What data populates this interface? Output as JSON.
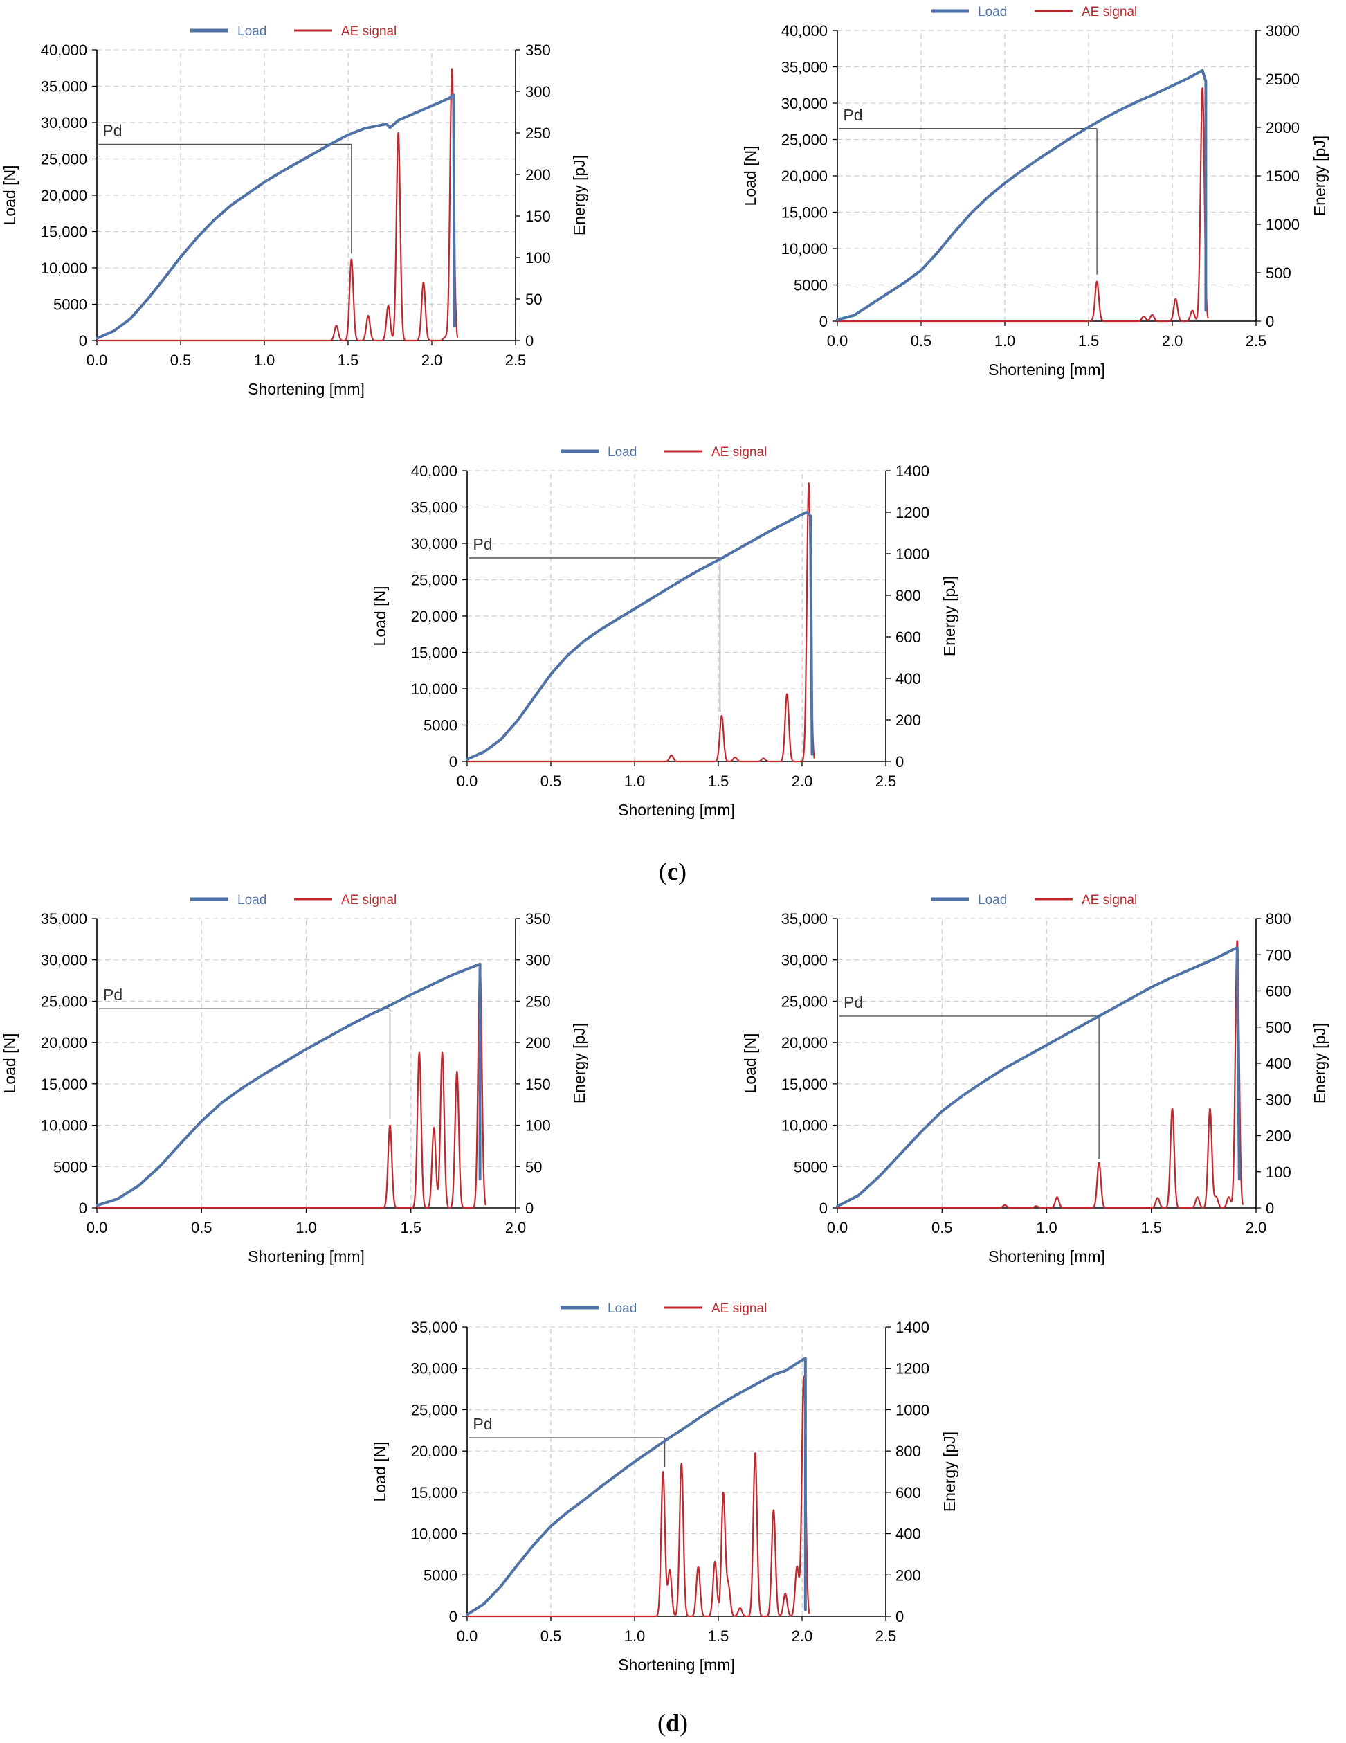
{
  "panel_labels": {
    "c": "c",
    "d": "d"
  },
  "colors": {
    "load": "#4f73a6",
    "ae": "#c0282d",
    "pd_line": "#555555",
    "axis": "#000000",
    "grid": "#d0d0d0"
  },
  "chart_data": [
    {
      "type": "line",
      "panel": "c",
      "position_in_panel": "top-left",
      "legend": {
        "load": "Load",
        "ae": "AE signal"
      },
      "xlabel": "Shortening [mm]",
      "ylabel": "Load [N]",
      "y2label": "Energy [pJ]",
      "xlim": [
        0,
        2.5
      ],
      "ylim": [
        0,
        40000
      ],
      "y2lim": [
        0,
        350
      ],
      "xticks": [
        0,
        0.5,
        1,
        1.5,
        2,
        2.5
      ],
      "xtick_labels": [
        "0.0",
        "0.5",
        "1.0",
        "1.5",
        "2.0",
        "2.5"
      ],
      "yticks": [
        0,
        5000,
        10000,
        15000,
        20000,
        25000,
        30000,
        35000,
        40000
      ],
      "ytick_labels": [
        "0",
        "5000",
        "10,000",
        "15,000",
        "20,000",
        "25,000",
        "30,000",
        "35,000",
        "40,000"
      ],
      "y2ticks": [
        0,
        50,
        100,
        150,
        200,
        250,
        300,
        350
      ],
      "y2tick_labels": [
        "0",
        "50",
        "100",
        "150",
        "200",
        "250",
        "300",
        "350"
      ],
      "pd": {
        "label": "Pd",
        "load": 27000,
        "x_start": 0.01,
        "x_end": 1.52,
        "energy_low": 105
      },
      "load_series": [
        [
          0,
          300
        ],
        [
          0.1,
          1300
        ],
        [
          0.2,
          3000
        ],
        [
          0.3,
          5600
        ],
        [
          0.4,
          8500
        ],
        [
          0.5,
          11500
        ],
        [
          0.6,
          14200
        ],
        [
          0.7,
          16600
        ],
        [
          0.8,
          18600
        ],
        [
          0.9,
          20200
        ],
        [
          1.0,
          21800
        ],
        [
          1.1,
          23200
        ],
        [
          1.2,
          24500
        ],
        [
          1.3,
          25800
        ],
        [
          1.4,
          27100
        ],
        [
          1.5,
          28300
        ],
        [
          1.6,
          29200
        ],
        [
          1.73,
          29800
        ],
        [
          1.75,
          29300
        ],
        [
          1.8,
          30300
        ],
        [
          1.9,
          31300
        ],
        [
          2.0,
          32300
        ],
        [
          2.1,
          33300
        ],
        [
          2.13,
          33800
        ],
        [
          2.135,
          2000
        ]
      ],
      "ae_peaks": [
        [
          1.43,
          18
        ],
        [
          1.52,
          98
        ],
        [
          1.62,
          30
        ],
        [
          1.74,
          42
        ],
        [
          1.8,
          250
        ],
        [
          1.95,
          70
        ],
        [
          2.08,
          4
        ],
        [
          2.12,
          327
        ]
      ]
    },
    {
      "type": "line",
      "panel": "c",
      "position_in_panel": "top-right",
      "legend": {
        "load": "Load",
        "ae": "AE signal"
      },
      "xlabel": "Shortening [mm]",
      "ylabel": "Load [N]",
      "y2label": "Energy [pJ]",
      "xlim": [
        0,
        2.5
      ],
      "ylim": [
        0,
        40000
      ],
      "y2lim": [
        0,
        3000
      ],
      "xticks": [
        0,
        0.5,
        1,
        1.5,
        2,
        2.5
      ],
      "xtick_labels": [
        "0.0",
        "0.5",
        "1.0",
        "1.5",
        "2.0",
        "2.5"
      ],
      "yticks": [
        0,
        5000,
        10000,
        15000,
        20000,
        25000,
        30000,
        35000,
        40000
      ],
      "ytick_labels": [
        "0",
        "5000",
        "10,000",
        "15,000",
        "20,000",
        "25,000",
        "30,000",
        "35,000",
        "40,000"
      ],
      "y2ticks": [
        0,
        500,
        1000,
        1500,
        2000,
        2500,
        3000
      ],
      "y2tick_labels": [
        "0",
        "500",
        "1000",
        "1500",
        "2000",
        "2500",
        "3000"
      ],
      "pd": {
        "label": "Pd",
        "load": 26500,
        "x_start": 0.01,
        "x_end": 1.55,
        "energy_low": 480
      },
      "load_series": [
        [
          0,
          200
        ],
        [
          0.1,
          800
        ],
        [
          0.2,
          2300
        ],
        [
          0.3,
          3800
        ],
        [
          0.4,
          5300
        ],
        [
          0.5,
          7000
        ],
        [
          0.6,
          9500
        ],
        [
          0.7,
          12300
        ],
        [
          0.8,
          14900
        ],
        [
          0.9,
          17100
        ],
        [
          1.0,
          19000
        ],
        [
          1.1,
          20700
        ],
        [
          1.2,
          22300
        ],
        [
          1.3,
          23800
        ],
        [
          1.4,
          25300
        ],
        [
          1.5,
          26700
        ],
        [
          1.6,
          28000
        ],
        [
          1.7,
          29200
        ],
        [
          1.8,
          30300
        ],
        [
          1.9,
          31300
        ],
        [
          2.0,
          32400
        ],
        [
          2.1,
          33500
        ],
        [
          2.18,
          34500
        ],
        [
          2.2,
          33000
        ],
        [
          2.2,
          1500
        ]
      ],
      "ae_peaks": [
        [
          1.55,
          410
        ],
        [
          1.83,
          50
        ],
        [
          1.88,
          65
        ],
        [
          2.02,
          230
        ],
        [
          2.12,
          110
        ],
        [
          2.18,
          2410
        ]
      ]
    },
    {
      "type": "line",
      "panel": "c",
      "position_in_panel": "middle",
      "legend": {
        "load": "Load",
        "ae": "AE signal"
      },
      "xlabel": "Shortening [mm]",
      "ylabel": "Load [N]",
      "y2label": "Energy [pJ]",
      "xlim": [
        0,
        2.5
      ],
      "ylim": [
        0,
        40000
      ],
      "y2lim": [
        0,
        1400
      ],
      "xticks": [
        0,
        0.5,
        1,
        1.5,
        2,
        2.5
      ],
      "xtick_labels": [
        "0.0",
        "0.5",
        "1.0",
        "1.5",
        "2.0",
        "2.5"
      ],
      "yticks": [
        0,
        5000,
        10000,
        15000,
        20000,
        25000,
        30000,
        35000,
        40000
      ],
      "ytick_labels": [
        "0",
        "5000",
        "10,000",
        "15,000",
        "20,000",
        "25,000",
        "30,000",
        "35,000",
        "40,000"
      ],
      "y2ticks": [
        0,
        200,
        400,
        600,
        800,
        1000,
        1200,
        1400
      ],
      "y2tick_labels": [
        "0",
        "200",
        "400",
        "600",
        "800",
        "1000",
        "1200",
        "1400"
      ],
      "pd": {
        "label": "Pd",
        "load": 28000,
        "x_start": 0.01,
        "x_end": 1.51,
        "energy_low": 240
      },
      "load_series": [
        [
          0,
          300
        ],
        [
          0.1,
          1300
        ],
        [
          0.2,
          3000
        ],
        [
          0.3,
          5600
        ],
        [
          0.4,
          8800
        ],
        [
          0.5,
          12000
        ],
        [
          0.6,
          14600
        ],
        [
          0.7,
          16600
        ],
        [
          0.8,
          18200
        ],
        [
          0.9,
          19600
        ],
        [
          1.0,
          21000
        ],
        [
          1.1,
          22400
        ],
        [
          1.2,
          23800
        ],
        [
          1.3,
          25200
        ],
        [
          1.4,
          26500
        ],
        [
          1.5,
          27700
        ],
        [
          1.6,
          29000
        ],
        [
          1.7,
          30300
        ],
        [
          1.8,
          31600
        ],
        [
          1.9,
          32800
        ],
        [
          2.0,
          34000
        ],
        [
          2.03,
          34300
        ],
        [
          2.05,
          33800
        ],
        [
          2.06,
          1000
        ]
      ],
      "ae_peaks": [
        [
          1.22,
          30
        ],
        [
          1.52,
          220
        ],
        [
          1.6,
          20
        ],
        [
          1.77,
          15
        ],
        [
          1.91,
          325
        ],
        [
          2.04,
          1340
        ]
      ]
    },
    {
      "type": "line",
      "panel": "d",
      "position_in_panel": "top-left",
      "legend": {
        "load": "Load",
        "ae": "AE signal"
      },
      "xlabel": "Shortening [mm]",
      "ylabel": "Load [N]",
      "y2label": "Energy [pJ]",
      "xlim": [
        0,
        2.0
      ],
      "ylim": [
        0,
        35000
      ],
      "y2lim": [
        0,
        350
      ],
      "xticks": [
        0,
        0.5,
        1,
        1.5,
        2
      ],
      "xtick_labels": [
        "0.0",
        "0.5",
        "1.0",
        "1.5",
        "2.0"
      ],
      "yticks": [
        0,
        5000,
        10000,
        15000,
        20000,
        25000,
        30000,
        35000
      ],
      "ytick_labels": [
        "0",
        "5000",
        "10,000",
        "15,000",
        "20,000",
        "25,000",
        "30,000",
        "35,000"
      ],
      "y2ticks": [
        0,
        50,
        100,
        150,
        200,
        250,
        300,
        350
      ],
      "y2tick_labels": [
        "0",
        "50",
        "100",
        "150",
        "200",
        "250",
        "300",
        "350"
      ],
      "pd": {
        "label": "Pd",
        "load": 24100,
        "x_start": 0.01,
        "x_end": 1.4,
        "energy_low": 108
      },
      "load_series": [
        [
          0,
          300
        ],
        [
          0.1,
          1100
        ],
        [
          0.2,
          2700
        ],
        [
          0.3,
          5000
        ],
        [
          0.4,
          7800
        ],
        [
          0.5,
          10500
        ],
        [
          0.6,
          12800
        ],
        [
          0.7,
          14600
        ],
        [
          0.8,
          16200
        ],
        [
          0.9,
          17700
        ],
        [
          1.0,
          19200
        ],
        [
          1.1,
          20600
        ],
        [
          1.2,
          22000
        ],
        [
          1.3,
          23300
        ],
        [
          1.4,
          24500
        ],
        [
          1.5,
          25800
        ],
        [
          1.6,
          27000
        ],
        [
          1.7,
          28200
        ],
        [
          1.8,
          29200
        ],
        [
          1.83,
          29500
        ],
        [
          1.83,
          3500
        ]
      ],
      "ae_peaks": [
        [
          1.4,
          100
        ],
        [
          1.54,
          188
        ],
        [
          1.61,
          97
        ],
        [
          1.65,
          188
        ],
        [
          1.72,
          165
        ],
        [
          1.83,
          295
        ]
      ]
    },
    {
      "type": "line",
      "panel": "d",
      "position_in_panel": "top-right",
      "legend": {
        "load": "Load",
        "ae": "AE signal"
      },
      "xlabel": "Shortening [mm]",
      "ylabel": "Load [N]",
      "y2label": "Energy [pJ]",
      "xlim": [
        0,
        2.0
      ],
      "ylim": [
        0,
        35000
      ],
      "y2lim": [
        0,
        800
      ],
      "xticks": [
        0,
        0.5,
        1,
        1.5,
        2
      ],
      "xtick_labels": [
        "0.0",
        "0.5",
        "1.0",
        "1.5",
        "2.0"
      ],
      "yticks": [
        0,
        5000,
        10000,
        15000,
        20000,
        25000,
        30000,
        35000
      ],
      "ytick_labels": [
        "0",
        "5000",
        "10,000",
        "15,000",
        "20,000",
        "25,000",
        "30,000",
        "35,000"
      ],
      "y2ticks": [
        0,
        100,
        200,
        300,
        400,
        500,
        600,
        700,
        800
      ],
      "y2tick_labels": [
        "0",
        "100",
        "200",
        "300",
        "400",
        "500",
        "600",
        "700",
        "800"
      ],
      "pd": {
        "label": "Pd",
        "load": 23200,
        "x_start": 0.01,
        "x_end": 1.25,
        "energy_low": 135
      },
      "load_series": [
        [
          0,
          200
        ],
        [
          0.1,
          1500
        ],
        [
          0.2,
          3800
        ],
        [
          0.3,
          6500
        ],
        [
          0.4,
          9200
        ],
        [
          0.5,
          11700
        ],
        [
          0.6,
          13600
        ],
        [
          0.7,
          15300
        ],
        [
          0.8,
          16900
        ],
        [
          0.9,
          18300
        ],
        [
          1.0,
          19700
        ],
        [
          1.1,
          21100
        ],
        [
          1.2,
          22500
        ],
        [
          1.3,
          23900
        ],
        [
          1.4,
          25300
        ],
        [
          1.5,
          26700
        ],
        [
          1.6,
          27900
        ],
        [
          1.7,
          29000
        ],
        [
          1.8,
          30100
        ],
        [
          1.91,
          31500
        ],
        [
          1.92,
          3500
        ]
      ],
      "ae_peaks": [
        [
          0.8,
          8
        ],
        [
          0.95,
          5
        ],
        [
          1.05,
          30
        ],
        [
          1.25,
          125
        ],
        [
          1.53,
          28
        ],
        [
          1.6,
          275
        ],
        [
          1.72,
          30
        ],
        [
          1.78,
          275
        ],
        [
          1.81,
          30
        ],
        [
          1.87,
          30
        ],
        [
          1.91,
          740
        ]
      ]
    },
    {
      "type": "line",
      "panel": "d",
      "position_in_panel": "bottom",
      "legend": {
        "load": "Load",
        "ae": "AE signal"
      },
      "xlabel": "Shortening [mm]",
      "ylabel": "Load [N]",
      "y2label": "Energy [pJ]",
      "xlim": [
        0,
        2.5
      ],
      "ylim": [
        0,
        35000
      ],
      "y2lim": [
        0,
        1400
      ],
      "xticks": [
        0,
        0.5,
        1,
        1.5,
        2,
        2.5
      ],
      "xtick_labels": [
        "0.0",
        "0.5",
        "1.0",
        "1.5",
        "2.0",
        "2.5"
      ],
      "yticks": [
        0,
        5000,
        10000,
        15000,
        20000,
        25000,
        30000,
        35000
      ],
      "ytick_labels": [
        "0",
        "5000",
        "10,000",
        "15,000",
        "20,000",
        "25,000",
        "30,000",
        "35,000"
      ],
      "y2ticks": [
        0,
        200,
        400,
        600,
        800,
        1000,
        1200,
        1400
      ],
      "y2tick_labels": [
        "0",
        "200",
        "400",
        "600",
        "800",
        "1000",
        "1200",
        "1400"
      ],
      "pd": {
        "label": "Pd",
        "load": 21600,
        "x_start": 0.01,
        "x_end": 1.18,
        "energy_low": 720
      },
      "load_series": [
        [
          0,
          200
        ],
        [
          0.1,
          1500
        ],
        [
          0.2,
          3600
        ],
        [
          0.3,
          6200
        ],
        [
          0.4,
          8700
        ],
        [
          0.5,
          10900
        ],
        [
          0.6,
          12600
        ],
        [
          0.7,
          14100
        ],
        [
          0.8,
          15700
        ],
        [
          0.9,
          17200
        ],
        [
          1.0,
          18700
        ],
        [
          1.1,
          20100
        ],
        [
          1.2,
          21500
        ],
        [
          1.3,
          22800
        ],
        [
          1.4,
          24200
        ],
        [
          1.5,
          25500
        ],
        [
          1.6,
          26700
        ],
        [
          1.7,
          27800
        ],
        [
          1.8,
          28900
        ],
        [
          1.84,
          29300
        ],
        [
          1.9,
          29700
        ],
        [
          2.0,
          31000
        ],
        [
          2.02,
          31200
        ],
        [
          2.02,
          800
        ]
      ],
      "ae_peaks": [
        [
          1.17,
          700
        ],
        [
          1.21,
          225
        ],
        [
          1.28,
          740
        ],
        [
          1.38,
          240
        ],
        [
          1.48,
          265
        ],
        [
          1.53,
          595
        ],
        [
          1.56,
          145
        ],
        [
          1.63,
          40
        ],
        [
          1.72,
          790
        ],
        [
          1.83,
          515
        ],
        [
          1.9,
          110
        ],
        [
          1.97,
          240
        ],
        [
          2.01,
          1160
        ]
      ]
    }
  ]
}
